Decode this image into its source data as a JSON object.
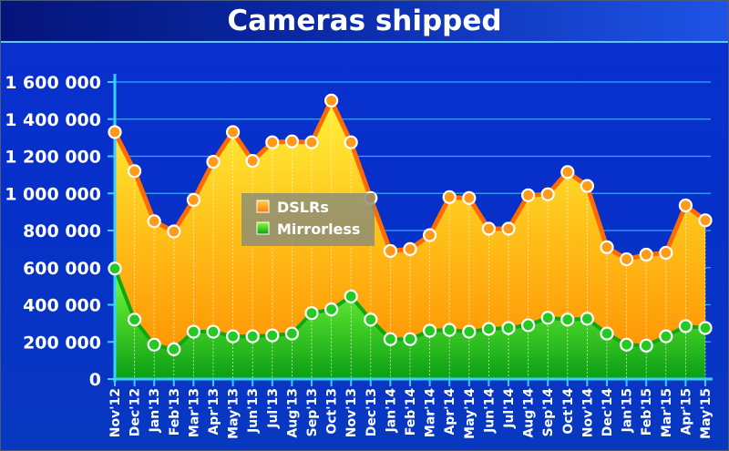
{
  "chart_data": {
    "type": "area",
    "title": "Cameras shipped",
    "xlabel": "",
    "ylabel": "",
    "ylim": [
      0,
      1600000
    ],
    "yticks": [
      0,
      200000,
      400000,
      600000,
      800000,
      1000000,
      1200000,
      1400000,
      1600000
    ],
    "ytick_labels": [
      "0",
      "200 000",
      "400 000",
      "600 000",
      "800 000",
      "1 000 000",
      "1 200 000",
      "1 400 000",
      "1 600 000"
    ],
    "grid": true,
    "legend_placement": "center",
    "categories": [
      "Nov'12",
      "Dec'12",
      "Jan'13",
      "Feb'13",
      "Mar'13",
      "Apr'13",
      "May'13",
      "Jun'13",
      "Jul'13",
      "Aug'13",
      "Sep'13",
      "Oct'13",
      "Nov'13",
      "Dec'13",
      "Jan'14",
      "Feb'14",
      "Mar'14",
      "Apr'14",
      "May'14",
      "Jun'14",
      "Jul'14",
      "Aug'14",
      "Sep'14",
      "Oct'14",
      "Nov'14",
      "Dec'14",
      "Jan'15",
      "Feb'15",
      "Mar'15",
      "Apr'15",
      "May'15"
    ],
    "series": [
      {
        "name": "DSLRs",
        "color": "#ff9a00",
        "values": [
          1330000,
          1120000,
          850000,
          795000,
          965000,
          1170000,
          1330000,
          1175000,
          1275000,
          1280000,
          1275000,
          1500000,
          1275000,
          975000,
          690000,
          700000,
          775000,
          980000,
          975000,
          810000,
          810000,
          990000,
          995000,
          1115000,
          1040000,
          710000,
          645000,
          670000,
          680000,
          935000,
          855000
        ]
      },
      {
        "name": "Mirrorless",
        "color": "#18c818",
        "values": [
          595000,
          320000,
          185000,
          160000,
          255000,
          255000,
          230000,
          230000,
          235000,
          245000,
          355000,
          375000,
          445000,
          320000,
          215000,
          215000,
          260000,
          265000,
          255000,
          270000,
          275000,
          290000,
          330000,
          320000,
          325000,
          245000,
          185000,
          180000,
          230000,
          285000,
          275000
        ]
      }
    ]
  }
}
